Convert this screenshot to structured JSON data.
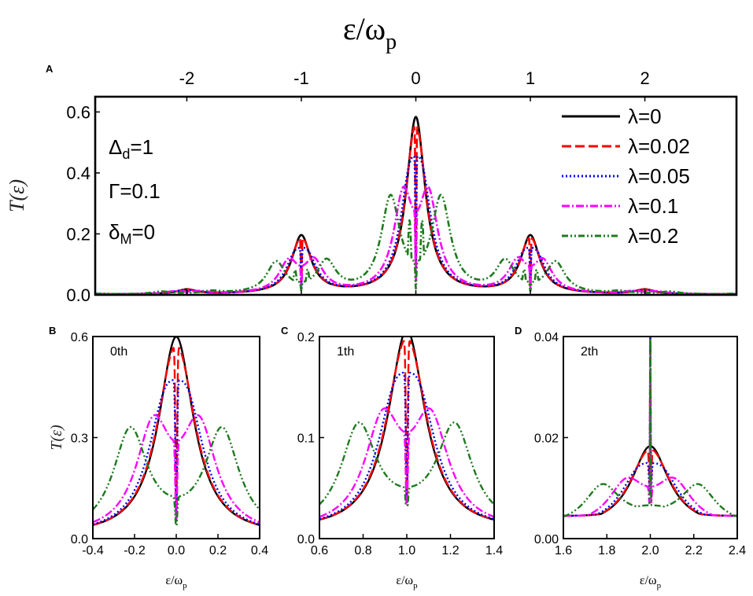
{
  "chart_data": {
    "type": "line",
    "params": {
      "delta": "Δ",
      "delta_sub": "d",
      "delta_val": "=1",
      "gamma": "Γ=0.1",
      "deltaM": "δ",
      "deltaM_sub": "M",
      "deltaM_val": "=0"
    },
    "series": [
      {
        "name": "λ=0",
        "lambda": 0,
        "color": "#000000",
        "dash": "solid"
      },
      {
        "name": "λ=0.02",
        "lambda": 0.02,
        "color": "#ff0000",
        "dash": "long-dash"
      },
      {
        "name": "λ=0.05",
        "lambda": 0.05,
        "color": "#0000ff",
        "dash": "dot"
      },
      {
        "name": "λ=0.1",
        "lambda": 0.1,
        "color": "#ff00ff",
        "dash": "dash-dot"
      },
      {
        "name": "λ=0.2",
        "lambda": 0.2,
        "color": "#1e7a1e",
        "dash": "dash-dot-dot"
      }
    ],
    "panels": [
      {
        "id": "A",
        "label": "A",
        "xlabel": "ε/ω",
        "xlabel_sub": "p",
        "ylabel": "T(ε)",
        "xlim": [
          -2.8,
          2.8
        ],
        "ylim": [
          0,
          0.65
        ],
        "xticks": [
          -2,
          -1,
          0,
          1,
          2
        ],
        "xtick_labels": [
          "-2",
          "-1",
          "0",
          "1",
          "2"
        ],
        "yticks": [
          0,
          0.2,
          0.4,
          0.6
        ],
        "ytick_labels": [
          "0.0",
          "0.2",
          "0.4",
          "0.6"
        ]
      },
      {
        "id": "B",
        "label": "B",
        "order_label": "0th",
        "xlabel": "ε/ω",
        "xlabel_sub": "p",
        "ylabel": "T(ε)",
        "xlim": [
          -0.4,
          0.4
        ],
        "ylim": [
          0,
          0.6
        ],
        "xticks": [
          -0.4,
          -0.2,
          0,
          0.2,
          0.4
        ],
        "xtick_labels": [
          "-0.4",
          "-0.2",
          "0.0",
          "0.2",
          "0.4"
        ],
        "yticks": [
          0,
          0.3,
          0.6
        ],
        "ytick_labels": [
          "0.0",
          "0.3",
          "0.6"
        ]
      },
      {
        "id": "C",
        "label": "C",
        "order_label": "1th",
        "xlabel": "ε/ω",
        "xlabel_sub": "p",
        "xlim": [
          0.6,
          1.4
        ],
        "ylim": [
          0,
          0.2
        ],
        "xticks": [
          0.6,
          0.8,
          1.0,
          1.2,
          1.4
        ],
        "xtick_labels": [
          "0.6",
          "0.8",
          "1.0",
          "1.2",
          "1.4"
        ],
        "yticks": [
          0,
          0.1,
          0.2
        ],
        "ytick_labels": [
          "0.0",
          "0.1",
          "0.2"
        ]
      },
      {
        "id": "D",
        "label": "D",
        "order_label": "2th",
        "xlabel": "ε/ω",
        "xlabel_sub": "p",
        "xlim": [
          1.6,
          2.4
        ],
        "ylim": [
          0,
          0.04
        ],
        "xticks": [
          1.6,
          1.8,
          2.0,
          2.2,
          2.4
        ],
        "xtick_labels": [
          "1.6",
          "1.8",
          "2.0",
          "2.2",
          "2.4"
        ],
        "yticks": [
          0,
          0.02,
          0.04
        ],
        "ytick_labels": [
          "0.00",
          "0.02",
          "0.04"
        ]
      }
    ]
  }
}
